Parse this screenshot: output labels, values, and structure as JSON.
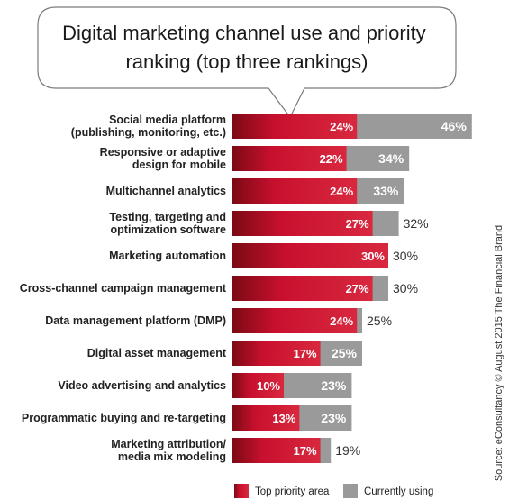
{
  "chart_data": {
    "type": "bar",
    "title": "Digital marketing channel use and priority ranking (top three rankings)",
    "title_lines": [
      "Digital marketing channel use and priority",
      "ranking (top three rankings)"
    ],
    "categories": [
      "Social media platform (publishing, monitoring, etc.)",
      "Responsive or adaptive design for mobile",
      "Multichannel analytics",
      "Testing, targeting and optimization software",
      "Marketing automation",
      "Cross-channel campaign management",
      "Data management platform (DMP)",
      "Digital asset management",
      "Video advertising and analytics",
      "Programmatic buying and re-targeting",
      "Marketing attribution/ media mix modeling"
    ],
    "category_lines": [
      [
        "Social media platform",
        "(publishing, monitoring, etc.)"
      ],
      [
        "Responsive or adaptive",
        "design for mobile"
      ],
      [
        "Multichannel analytics"
      ],
      [
        "Testing, targeting and",
        "optimization software"
      ],
      [
        "Marketing automation"
      ],
      [
        "Cross-channel campaign management"
      ],
      [
        "Data management platform (DMP)"
      ],
      [
        "Digital asset management"
      ],
      [
        "Video advertising and analytics"
      ],
      [
        "Programmatic buying and re-targeting"
      ],
      [
        "Marketing attribution/",
        "media mix modeling"
      ]
    ],
    "series": [
      {
        "name": "Top priority area",
        "values": [
          24,
          22,
          24,
          27,
          30,
          27,
          24,
          17,
          10,
          13,
          17
        ],
        "color": "#c8102e"
      },
      {
        "name": "Currently using",
        "values": [
          46,
          34,
          33,
          32,
          30,
          30,
          25,
          25,
          23,
          23,
          19
        ],
        "color": "#9a9a9a"
      }
    ],
    "value_suffix": "%",
    "xlim": [
      0,
      46
    ],
    "grid": false,
    "legend": "bottom",
    "source": "Source: eConsultancy © August 2015 The Financial Brand"
  }
}
